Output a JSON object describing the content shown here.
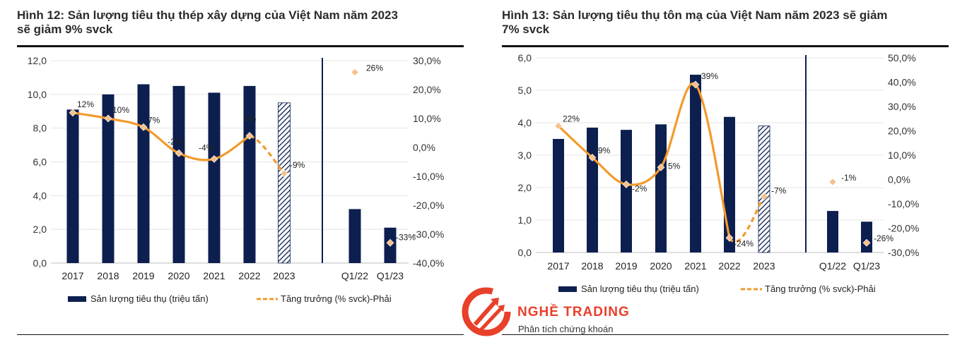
{
  "colors": {
    "bar": "#0d1f4f",
    "line": "#f39a2c",
    "marker": "#f7c08a",
    "axis_text": "#333333",
    "brand": "#e8402a"
  },
  "logo": {
    "brand": "NGHỀ TRADING",
    "tagline": "Phân tích chứng khoán",
    "icon": "upward-arrows-logo-icon"
  },
  "chart_data": [
    {
      "type": "bar",
      "title": "Hình 12: Sản lượng tiêu thụ thép xây dựng của Việt Nam năm 2023 sẽ giảm 9% svck",
      "title_lines": [
        "Hình 12: Sản lượng tiêu thụ thép xây dựng của Việt Nam năm 2023",
        "sẽ giảm 9% svck"
      ],
      "categories": [
        "2017",
        "2018",
        "2019",
        "2020",
        "2021",
        "2022",
        "2023",
        "Q1/22",
        "Q1/23"
      ],
      "left_axis": {
        "ylim": [
          0,
          12
        ],
        "ticks": [
          "0,0",
          "2,0",
          "4,0",
          "6,0",
          "8,0",
          "10,0",
          "12,0"
        ]
      },
      "right_axis": {
        "ylim": [
          -40,
          30
        ],
        "ticks": [
          "-40,0%",
          "-30,0%",
          "-20,0%",
          "-10,0%",
          "0,0%",
          "10,0%",
          "20,0%",
          "30,0%"
        ]
      },
      "series": [
        {
          "name": "Sản lượng tiêu thụ (triệu tấn)",
          "kind": "bar",
          "values": [
            9.1,
            10.0,
            10.6,
            10.5,
            10.1,
            10.5,
            9.5,
            3.2,
            2.1
          ],
          "forecast_index": 6
        },
        {
          "name": "Tăng trưởng (% svck)-Phải",
          "kind": "line",
          "values": [
            12,
            10,
            7,
            -2,
            -4,
            4,
            -9,
            26,
            -33
          ],
          "labels": [
            "12%",
            "10%",
            "7%",
            "-2%",
            "-4%",
            "4%",
            "-9%",
            "26%",
            "-33%"
          ],
          "forecast_index": 6,
          "marker_only_indices": [
            7,
            8
          ]
        }
      ],
      "legend": "bottom"
    },
    {
      "type": "bar",
      "title": "Hình 13: Sản lượng tiêu thụ tôn mạ của Việt Nam năm 2023 sẽ giảm 7% svck",
      "title_lines": [
        "Hình 13: Sản lượng tiêu thụ tôn mạ của Việt Nam năm 2023 sẽ giảm",
        "7% svck"
      ],
      "categories": [
        "2017",
        "2018",
        "2019",
        "2020",
        "2021",
        "2022",
        "2023",
        "Q1/22",
        "Q1/23"
      ],
      "left_axis": {
        "ylim": [
          0,
          6
        ],
        "ticks": [
          "0,0",
          "1,0",
          "2,0",
          "3,0",
          "4,0",
          "5,0",
          "6,0"
        ]
      },
      "right_axis": {
        "ylim": [
          -30,
          50
        ],
        "ticks": [
          "-30,0%",
          "-20,0%",
          "-10,0%",
          "0,0%",
          "10,0%",
          "20,0%",
          "30,0%",
          "40,0%",
          "50,0%"
        ]
      },
      "series": [
        {
          "name": "Sản lượng tiêu thụ (triệu tấn)",
          "kind": "bar",
          "values": [
            3.5,
            3.85,
            3.78,
            3.95,
            5.48,
            4.18,
            3.9,
            1.28,
            0.95
          ],
          "forecast_index": 6
        },
        {
          "name": "Tăng trưởng (% svck)-Phải",
          "kind": "line",
          "values": [
            22,
            9,
            -2,
            5,
            39,
            -24,
            -7,
            -1,
            -26
          ],
          "labels": [
            "22%",
            "9%",
            "-2%",
            "5%",
            "39%",
            "-24%",
            "-7%",
            "-1%",
            "-26%"
          ],
          "forecast_index": 6,
          "marker_only_indices": [
            7,
            8
          ]
        }
      ],
      "legend": "bottom"
    }
  ]
}
